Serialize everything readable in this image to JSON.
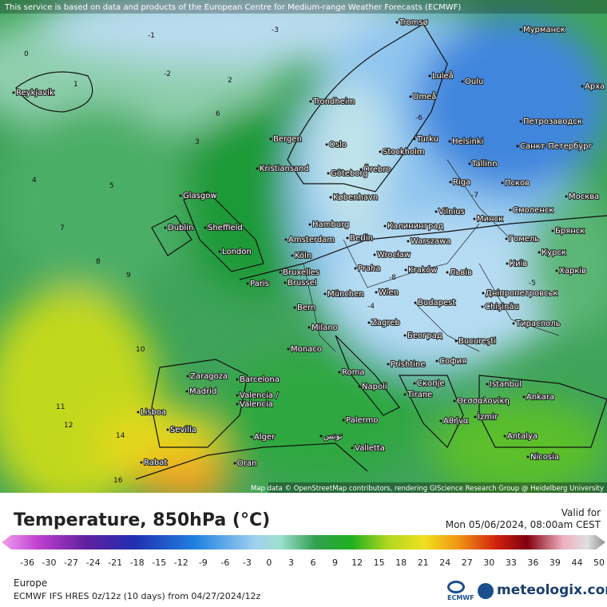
{
  "header": {
    "notice": "This service is based on data and products of the European Centre for Medium-range Weather Forecasts (ECMWF)"
  },
  "map": {
    "attribution": "Map data © OpenStreetMap contributors, rendering GIScience Research Group @ Heidelberg University",
    "cities": [
      "Reykjavík",
      "Tromsø",
      "Мурманск",
      "Luleå",
      "Oulu",
      "Арха",
      "Trondheim",
      "Umeå",
      "Петрозаводск",
      "Bergen",
      "Oslo",
      "Turku",
      "Helsinki",
      "Санкт-Петербург",
      "Stockholm",
      "Örebro",
      "Kristiansand",
      "Göteborg",
      "Tallinn",
      "Riga",
      "Псков",
      "Glasgow",
      "København",
      "Москва",
      "Vilnius",
      "Минск",
      "Смоленск",
      "Dublin",
      "Sheffield",
      "Hamburg",
      "Калининград",
      "Berlin",
      "Amsterdam",
      "Warszawa",
      "Гомель",
      "Брянск",
      "London",
      "Köln",
      "Wrocław",
      "Київ",
      "Курск",
      "Bruxelles",
      "Praha",
      "Kraków",
      "Львів",
      "Харків",
      "Brussel",
      "Paris",
      "Wien",
      "München",
      "Дніпропетровськ",
      "Budapest",
      "Chişinău",
      "Bern",
      "Тирасполь",
      "Zagreb",
      "Milano",
      "Београд",
      "Bucureşti",
      "Monaco",
      "София",
      "Prishtine",
      "Zaragoza",
      "Barcelona",
      "Roma",
      "Istanbul",
      "Скопје",
      "Napoli",
      "Tirane",
      "Θεσσαλονίκη",
      "Ankara",
      "Madrid",
      "Valencia /",
      "Valencia",
      "Lisboa",
      "Palermo",
      "Αθήνα",
      "İzmir",
      "Sevilla",
      "Alger",
      "تونس",
      "Antalya",
      "Valletta",
      "Nicosia",
      "Rabat",
      "Oran"
    ],
    "contours": [
      "-3",
      "-1",
      "-2",
      "0",
      "1",
      "2",
      "3",
      "4",
      "5",
      "6",
      "7",
      "8",
      "9",
      "10",
      "11",
      "12",
      "14",
      "16",
      "-6",
      "-7",
      "-5",
      "-4",
      "-8"
    ]
  },
  "legend": {
    "title": "Temperature, 850hPa (°C)",
    "valid_label": "Valid for",
    "valid_time": "Mon 05/06/2024, 08:00am CEST",
    "ticks": [
      -36,
      -30,
      -27,
      -24,
      -21,
      -18,
      -15,
      -12,
      -9,
      -6,
      -3,
      0,
      3,
      6,
      9,
      12,
      15,
      18,
      21,
      24,
      27,
      30,
      33,
      36,
      39,
      44,
      50
    ]
  },
  "footer": {
    "region": "Europe",
    "model": "ECMWF IFS HRES 0z/12z (10 days) from 04/27/2024/12z",
    "ecmwf": "ECMWF",
    "brand": "meteologix.com"
  }
}
